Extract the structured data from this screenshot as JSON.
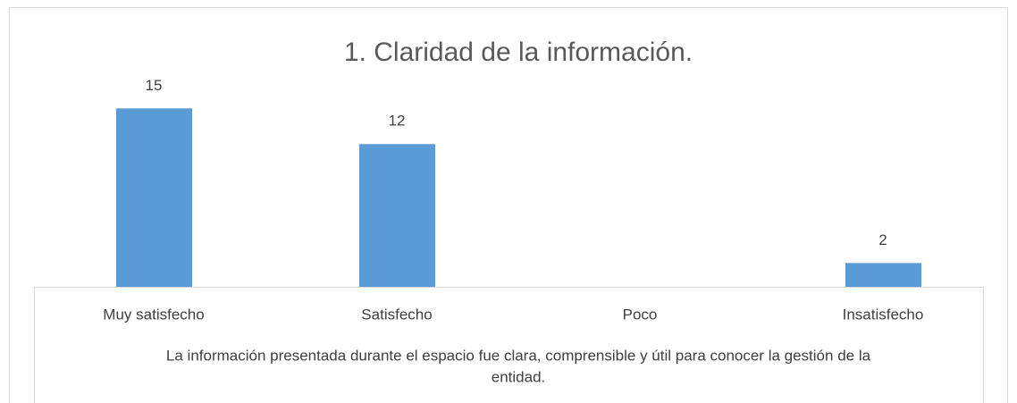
{
  "chart_data": {
    "type": "bar",
    "title": "1. Claridad de la información.",
    "categories": [
      "Muy satisfecho",
      "Satisfecho",
      "Poco",
      "Insatisfecho"
    ],
    "values": [
      15,
      12,
      null,
      2
    ],
    "color": "#5b9bd5",
    "ylim": [
      0,
      16
    ],
    "x_label": [
      "La información presentada durante el espacio fue clara, comprensible y útil para conocer la gestión de la",
      "entidad."
    ]
  }
}
